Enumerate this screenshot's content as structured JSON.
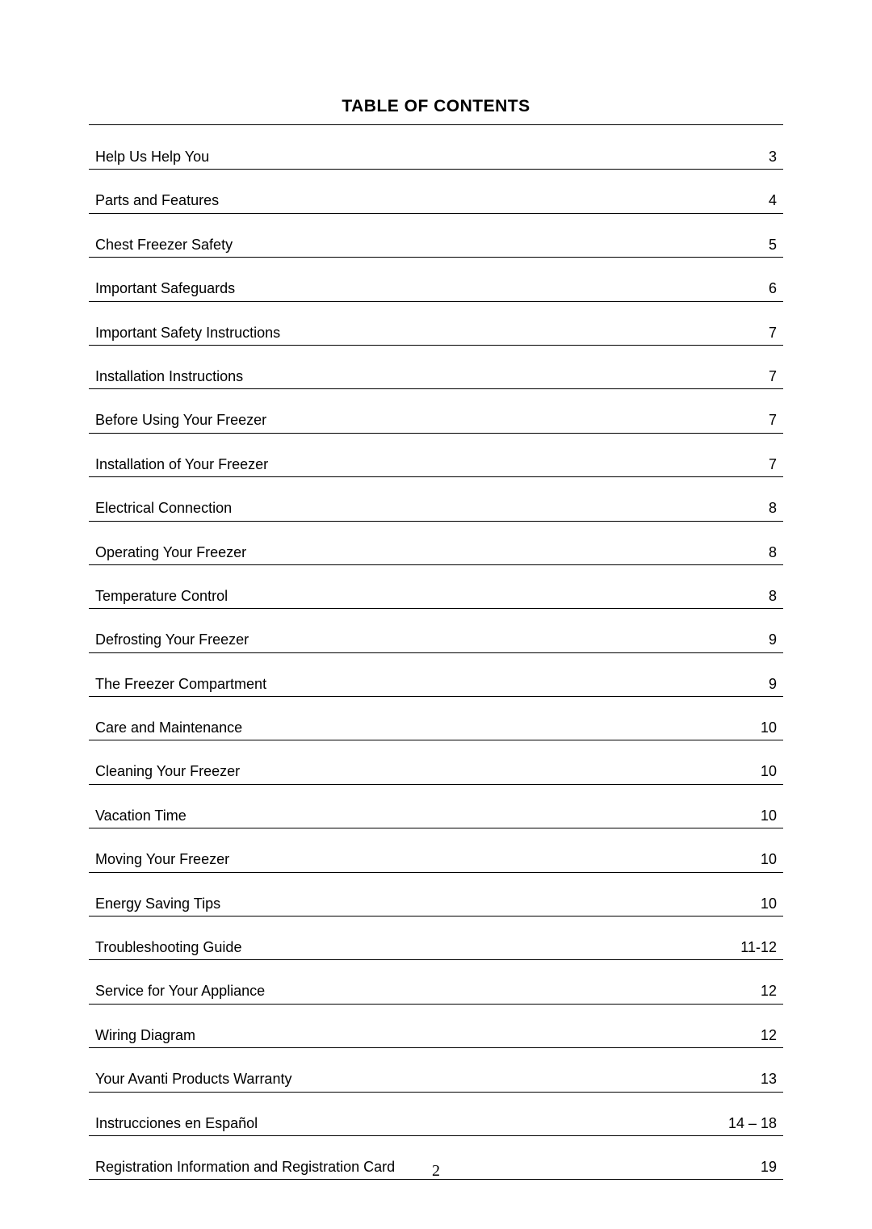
{
  "title": "TABLE OF CONTENTS",
  "page_number": "2",
  "entries": [
    {
      "label": "Help Us Help You",
      "page": "3"
    },
    {
      "label": "Parts and Features",
      "page": "4"
    },
    {
      "label": "Chest Freezer Safety",
      "page": "5"
    },
    {
      "label": "Important Safeguards",
      "page": "6"
    },
    {
      "label": "Important Safety Instructions",
      "page": "7"
    },
    {
      "label": "Installation Instructions",
      "page": "7"
    },
    {
      "label": "Before Using Your Freezer",
      "page": "7"
    },
    {
      "label": "Installation of Your Freezer",
      "page": "7"
    },
    {
      "label": "Electrical Connection",
      "page": "8"
    },
    {
      "label": "Operating Your Freezer",
      "page": "8"
    },
    {
      "label": "Temperature Control",
      "page": "8"
    },
    {
      "label": "Defrosting Your Freezer",
      "page": "9"
    },
    {
      "label": "The Freezer Compartment",
      "page": "9"
    },
    {
      "label": "Care and Maintenance",
      "page": "10"
    },
    {
      "label": "Cleaning Your Freezer",
      "page": "10"
    },
    {
      "label": "Vacation Time",
      "page": "10"
    },
    {
      "label": "Moving Your Freezer",
      "page": "10"
    },
    {
      "label": "Energy Saving Tips",
      "page": "10"
    },
    {
      "label": "Troubleshooting Guide",
      "page": "11-12"
    },
    {
      "label": "Service for Your Appliance",
      "page": "12"
    },
    {
      "label": "Wiring Diagram",
      "page": "12"
    },
    {
      "label": "Your Avanti Products Warranty",
      "page": "13"
    },
    {
      "label": "Instrucciones en Español",
      "page": "14 – 18"
    },
    {
      "label": "Registration Information and Registration Card",
      "page": "19"
    }
  ]
}
